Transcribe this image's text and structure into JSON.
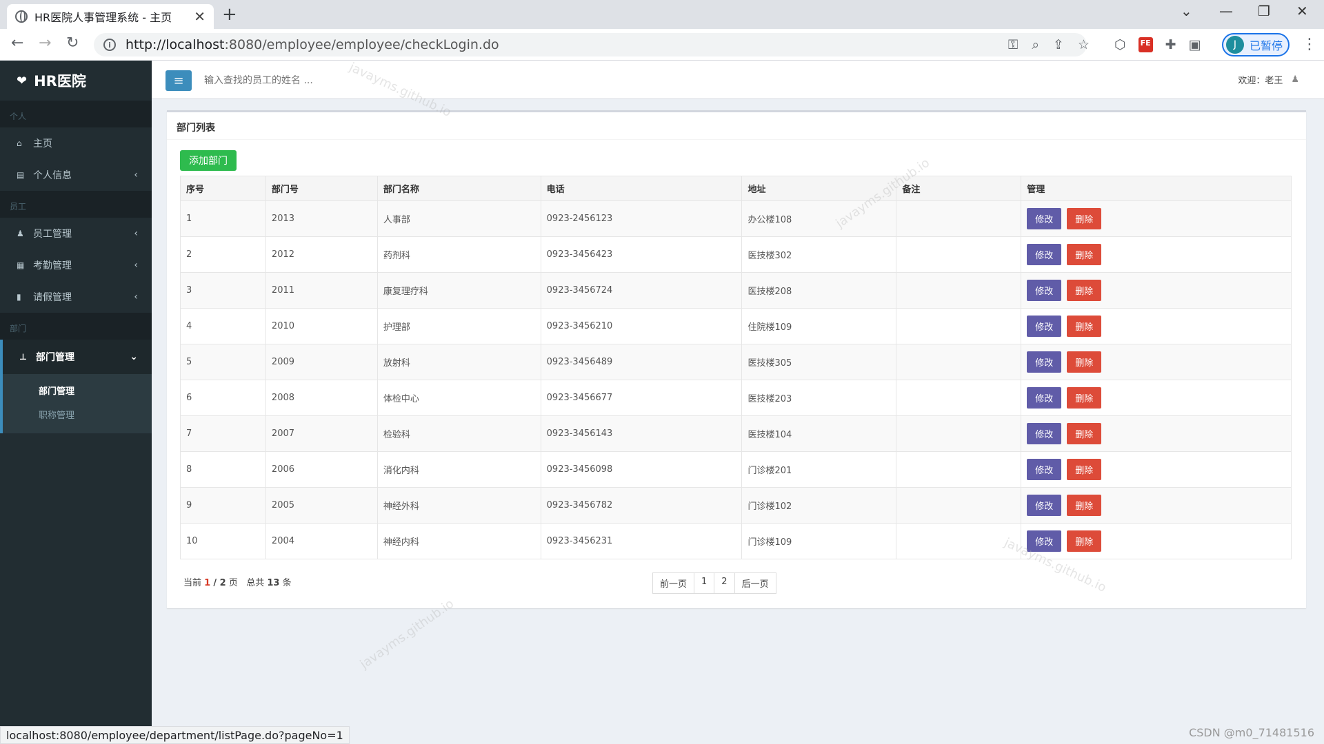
{
  "browser": {
    "tab_title": "HR医院人事管理系统 - 主页",
    "url_host": "http://localhost",
    "url_path": ":8080/employee/employee/checkLogin.do",
    "profile_initial": "J",
    "profile_label": "已暂停",
    "status_url": "localhost:8080/employee/department/listPage.do?pageNo=1"
  },
  "sidebar": {
    "brand": "HR医院",
    "sections": {
      "personal": "个人",
      "staff": "员工",
      "dept": "部门"
    },
    "items": {
      "home": "主页",
      "profile": "个人信息",
      "employee_mgmt": "员工管理",
      "attendance_mgmt": "考勤管理",
      "leave_mgmt": "请假管理",
      "dept_mgmt": "部门管理"
    },
    "submenu": [
      "部门管理",
      "职称管理"
    ]
  },
  "header": {
    "search_placeholder": "输入查找的员工的姓名 ...",
    "welcome": "欢迎：老王"
  },
  "main": {
    "box_title": "部门列表",
    "add_button": "添加部门",
    "columns": [
      "序号",
      "部门号",
      "部门名称",
      "电话",
      "地址",
      "备注",
      "管理"
    ],
    "rows": [
      {
        "idx": "1",
        "code": "2013",
        "name": "人事部",
        "phone": "0923-2456123",
        "addr": "办公楼108",
        "note": ""
      },
      {
        "idx": "2",
        "code": "2012",
        "name": "药剂科",
        "phone": "0923-3456423",
        "addr": "医技楼302",
        "note": ""
      },
      {
        "idx": "3",
        "code": "2011",
        "name": "康复理疗科",
        "phone": "0923-3456724",
        "addr": "医技楼208",
        "note": ""
      },
      {
        "idx": "4",
        "code": "2010",
        "name": "护理部",
        "phone": "0923-3456210",
        "addr": "住院楼109",
        "note": ""
      },
      {
        "idx": "5",
        "code": "2009",
        "name": "放射科",
        "phone": "0923-3456489",
        "addr": "医技楼305",
        "note": ""
      },
      {
        "idx": "6",
        "code": "2008",
        "name": "体检中心",
        "phone": "0923-3456677",
        "addr": "医技楼203",
        "note": ""
      },
      {
        "idx": "7",
        "code": "2007",
        "name": "检验科",
        "phone": "0923-3456143",
        "addr": "医技楼104",
        "note": ""
      },
      {
        "idx": "8",
        "code": "2006",
        "name": "消化内科",
        "phone": "0923-3456098",
        "addr": "门诊楼201",
        "note": ""
      },
      {
        "idx": "9",
        "code": "2005",
        "name": "神经外科",
        "phone": "0923-3456782",
        "addr": "门诊楼102",
        "note": ""
      },
      {
        "idx": "10",
        "code": "2004",
        "name": "神经内科",
        "phone": "0923-3456231",
        "addr": "门诊楼109",
        "note": ""
      }
    ],
    "edit_label": "修改",
    "delete_label": "删除",
    "page_info": {
      "prefix": "当前",
      "current": "1",
      "total_pages": "/ 2",
      "page_suffix": "页",
      "total_prefix": "总共",
      "total": "13",
      "total_suffix": "条"
    },
    "pager": [
      "前一页",
      "1",
      "2",
      "后一页"
    ]
  },
  "watermark_text": "javayms.github.io",
  "corner_mark": "CSDN @m0_71481516",
  "colors": {
    "sidebar_bg": "#222d32",
    "accent": "#3c8dbc",
    "add_green": "#2ebb4e",
    "edit_purple": "#605ca8",
    "delete_red": "#dd4b39"
  }
}
